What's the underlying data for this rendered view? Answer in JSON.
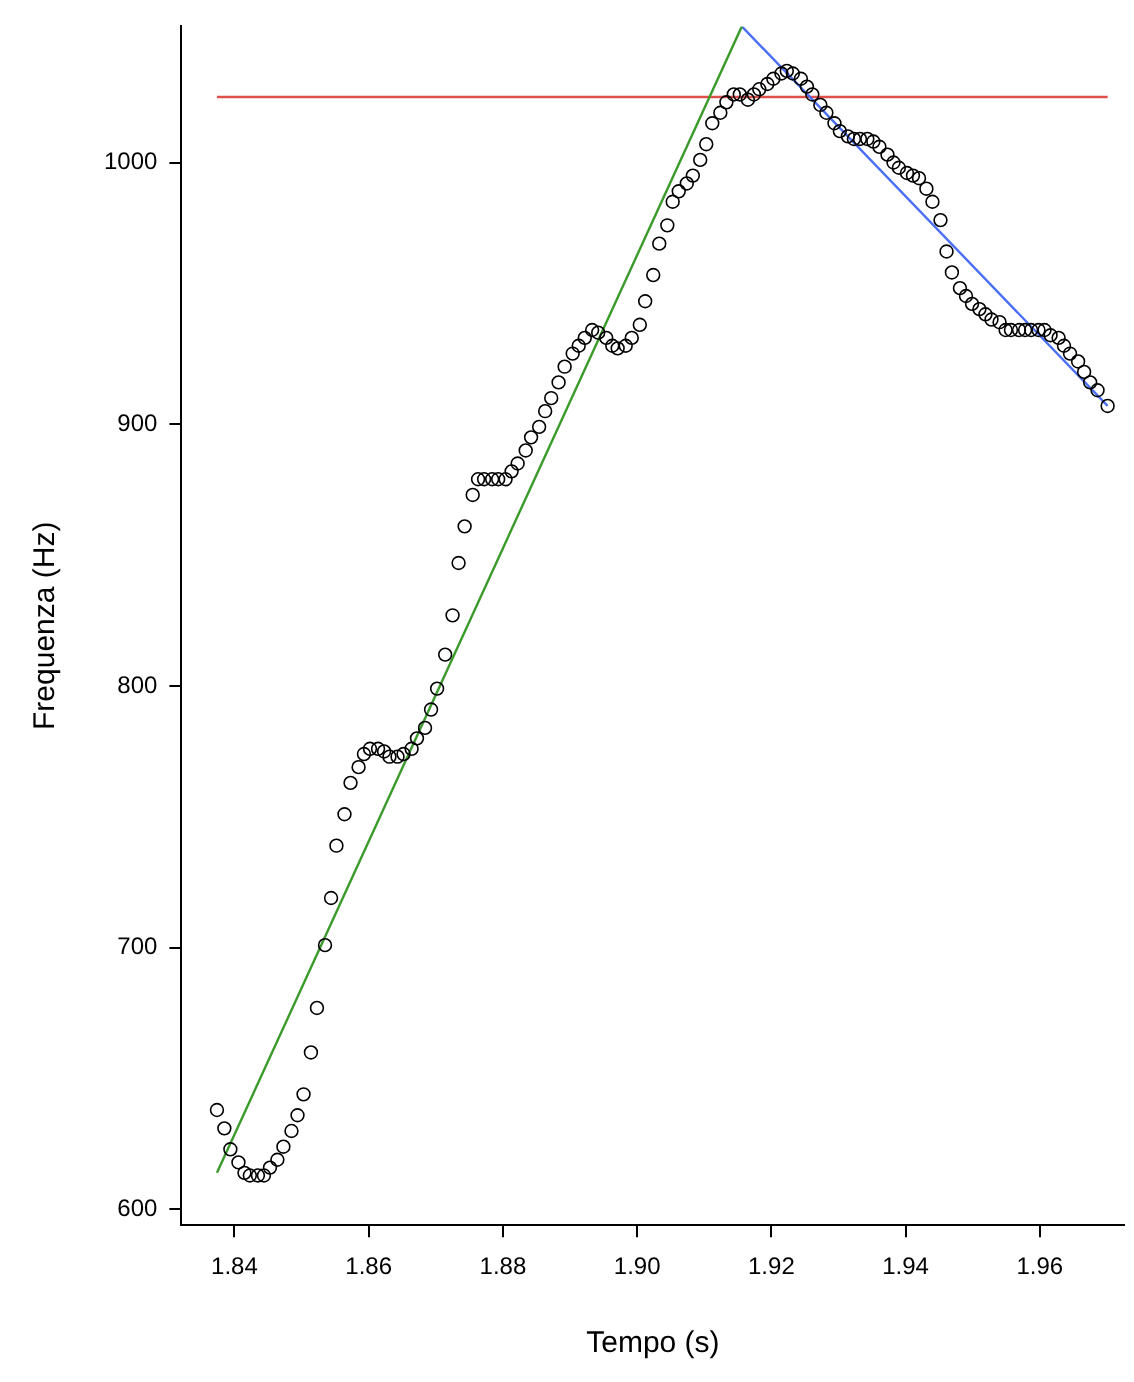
{
  "chart_data": {
    "type": "scatter",
    "xlabel": "Tempo (s)",
    "ylabel": "Frequenza (Hz)",
    "xlim": [
      1.8321,
      1.9726
    ],
    "ylim": [
      594,
      1052
    ],
    "xticks": [
      1.84,
      1.86,
      1.88,
      {
        "value": 1.9,
        "label": "1.90"
      },
      1.92,
      1.94,
      1.96
    ],
    "yticks": [
      600,
      700,
      800,
      900,
      1000
    ],
    "grid": false,
    "legend": false,
    "series": [
      {
        "color": "#000000",
        "marker": "circle",
        "x": [
          1.8374,
          1.8385,
          1.8394,
          1.8406,
          1.8415,
          1.8423,
          1.8435,
          1.8444,
          1.8453,
          1.8464,
          1.8473,
          1.8485,
          1.8494,
          1.8503,
          1.8514,
          1.8523,
          1.8535,
          1.8544,
          1.8552,
          1.8564,
          1.8573,
          1.8585,
          1.8593,
          1.8602,
          1.8614,
          1.8623,
          1.8631,
          1.8643,
          1.8652,
          1.8664,
          1.8672,
          1.8684,
          1.8693,
          1.8702,
          1.8714,
          1.8725,
          1.8734,
          1.8743,
          1.8755,
          1.8763,
          1.8772,
          1.8784,
          1.8793,
          1.8804,
          1.8813,
          1.8822,
          1.8834,
          1.8842,
          1.8854,
          1.8863,
          1.8872,
          1.8883,
          1.8892,
          1.8904,
          1.8913,
          1.8922,
          1.8933,
          1.8942,
          1.8954,
          1.8963,
          1.8971,
          1.8983,
          1.8992,
          1.9004,
          1.9012,
          1.9024,
          1.9033,
          1.9045,
          1.9053,
          1.9062,
          1.9074,
          1.9083,
          1.9094,
          1.9103,
          1.9112,
          1.9124,
          1.9133,
          1.9144,
          1.9153,
          1.9165,
          1.9174,
          1.9182,
          1.9194,
          1.9203,
          1.9215,
          1.9223,
          1.9232,
          1.9244,
          1.9253,
          1.9261,
          1.9273,
          1.9282,
          1.9294,
          1.9302,
          1.9314,
          1.9323,
          1.9332,
          1.9343,
          1.9352,
          1.9361,
          1.9373,
          1.9382,
          1.939,
          1.9402,
          1.9411,
          1.942,
          1.9431,
          1.944,
          1.9452,
          1.9461,
          1.9469,
          1.9481,
          1.949,
          1.9499,
          1.951,
          1.9519,
          1.9528,
          1.954,
          1.9549,
          1.9557,
          1.9569,
          1.9578,
          1.9587,
          1.9598,
          1.9607,
          1.9616,
          1.9628,
          1.9636,
          1.9645,
          1.9657,
          1.9666,
          1.9675,
          1.9686,
          1.9701
        ],
        "values": [
          638,
          631,
          623,
          618,
          614,
          613,
          613,
          613,
          616,
          619,
          624,
          630,
          636,
          644,
          660,
          677,
          701,
          719,
          739,
          751,
          763,
          769,
          774,
          776,
          776,
          775,
          773,
          773,
          774,
          776,
          780,
          784,
          791,
          799,
          812,
          827,
          847,
          861,
          873,
          879,
          879,
          879,
          879,
          879,
          882,
          885,
          890,
          895,
          899,
          905,
          910,
          916,
          922,
          927,
          930,
          933,
          936,
          935,
          933,
          930,
          929,
          930,
          933,
          938,
          947,
          957,
          969,
          976,
          985,
          989,
          992,
          995,
          1001,
          1007,
          1015,
          1019,
          1023,
          1026,
          1026,
          1024,
          1026,
          1028,
          1030,
          1032,
          1034,
          1035,
          1034,
          1032,
          1029,
          1026,
          1022,
          1019,
          1015,
          1012,
          1010,
          1009,
          1009,
          1009,
          1008,
          1006,
          1003,
          1000,
          998,
          996,
          995,
          994,
          990,
          985,
          978,
          966,
          958,
          952,
          949,
          946,
          944,
          942,
          940,
          939,
          936,
          936,
          936,
          936,
          936,
          936,
          936,
          934,
          933,
          930,
          927,
          924,
          920,
          916,
          913,
          907
        ]
      },
      {
        "type": "line",
        "marker": "none",
        "color": "#3a9a2a",
        "x": [
          1.8374,
          1.9156
        ],
        "values": [
          614,
          1052
        ]
      },
      {
        "type": "line",
        "marker": "none",
        "color": "#4a6ef5",
        "x": [
          1.9156,
          1.9701
        ],
        "values": [
          1052,
          907
        ]
      },
      {
        "type": "line",
        "marker": "none",
        "color": "#e0504a",
        "x": [
          1.8374,
          1.9701
        ],
        "values": [
          1025,
          1025
        ]
      }
    ]
  }
}
